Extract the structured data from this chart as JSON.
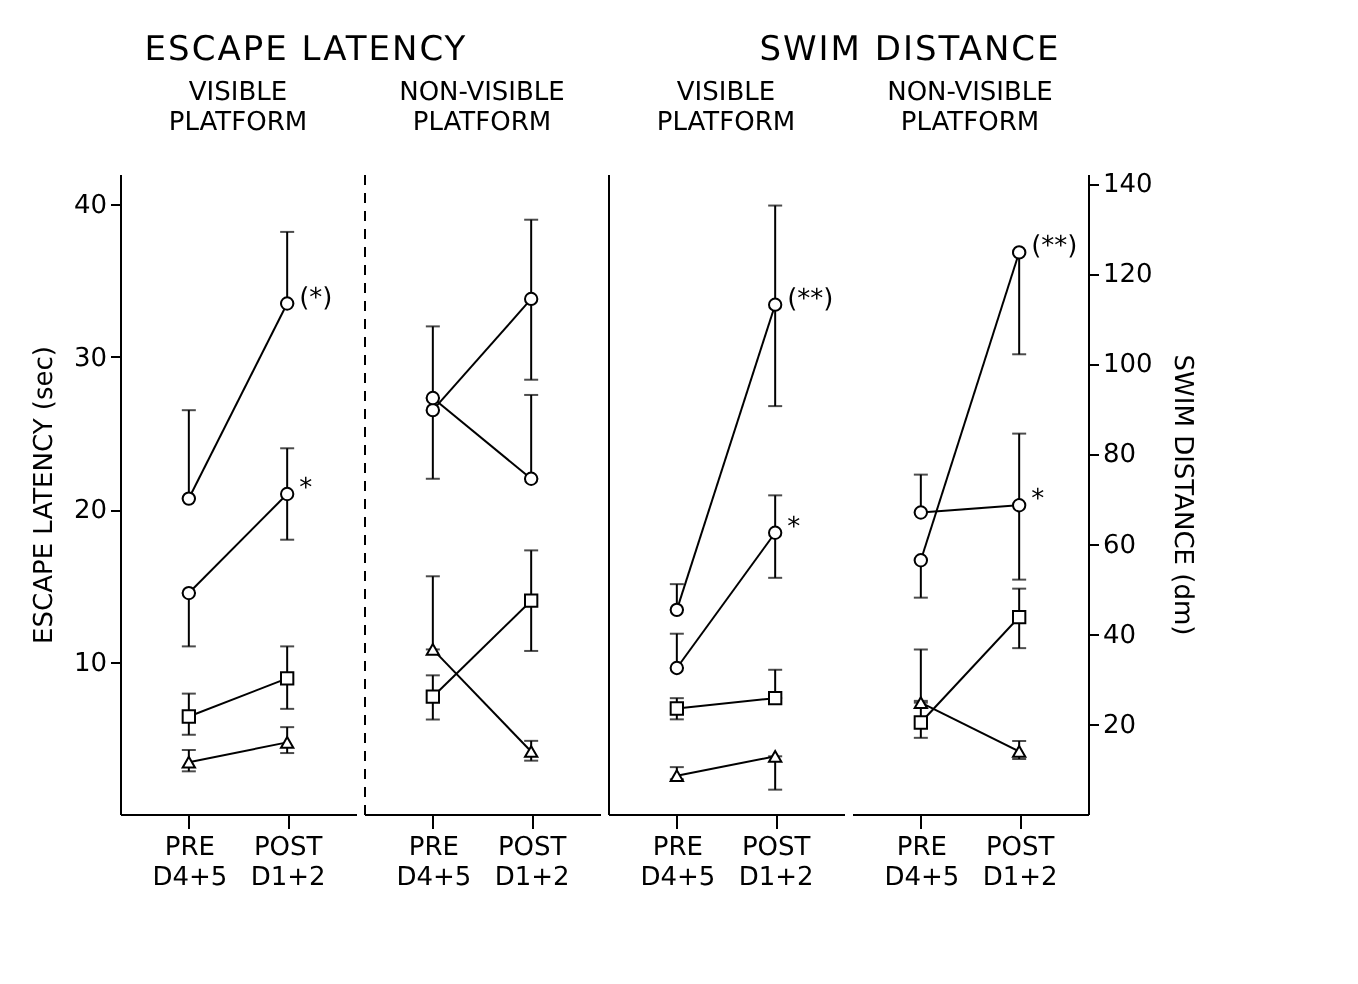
{
  "chart_data": [
    {
      "type": "line",
      "title": "ESCAPE LATENCY",
      "subtitle": "VISIBLE PLATFORM",
      "ylabel": "ESCAPE LATENCY (sec)",
      "categories": [
        "PRE D4+5",
        "POST D1+2"
      ],
      "ylim": [
        0,
        42
      ],
      "yticks": [
        10,
        20,
        30,
        40
      ],
      "series": [
        {
          "color": "#000000",
          "marker": "circle",
          "values": [
            20.7,
            33.5
          ],
          "errors": [
            [
              20.7,
              26.5
            ],
            [
              33.5,
              38.2
            ]
          ]
        },
        {
          "color": "#000000",
          "marker": "circle",
          "values": [
            14.5,
            21
          ],
          "errors": [
            [
              11,
              14.5
            ],
            [
              18,
              24
            ]
          ]
        },
        {
          "color": "#000000",
          "marker": "square",
          "values": [
            6.4,
            8.9
          ],
          "errors": [
            [
              5.2,
              7.9
            ],
            [
              6.9,
              11
            ]
          ]
        },
        {
          "color": "#000000",
          "marker": "triangle",
          "values": [
            3.4,
            4.7
          ],
          "errors": [
            [
              2.8,
              4.2
            ],
            [
              4,
              5.7
            ]
          ]
        }
      ],
      "annotations": [
        {
          "text": "(*)",
          "x": "POST D1+2",
          "y": 33.5
        },
        {
          "text": "*",
          "x": "POST D1+2",
          "y": 21
        }
      ]
    },
    {
      "type": "line",
      "subtitle": "NON-VISIBLE PLATFORM",
      "categories": [
        "PRE D4+5",
        "POST D1+2"
      ],
      "ylim": [
        0,
        42
      ],
      "tick_labels": "x",
      "series": [
        {
          "color": "#000000",
          "marker": "circle",
          "values": [
            26.5,
            33.8
          ],
          "errors": [
            [
              22,
              26.5
            ],
            [
              28.5,
              39
            ]
          ]
        },
        {
          "color": "#000000",
          "marker": "circle",
          "values": [
            27.3,
            22
          ],
          "errors": [
            [
              27.3,
              32
            ],
            [
              22,
              27.5
            ]
          ]
        },
        {
          "color": "#000000",
          "marker": "square",
          "values": [
            7.7,
            14
          ],
          "errors": [
            [
              6.2,
              9.1
            ],
            [
              10.7,
              17.3
            ]
          ]
        },
        {
          "color": "#000000",
          "marker": "triangle",
          "values": [
            10.8,
            4.1
          ],
          "errors": [
            [
              10.8,
              15.6
            ],
            [
              3.5,
              4.8
            ]
          ]
        }
      ]
    },
    {
      "type": "line",
      "title": "SWIM DISTANCE",
      "subtitle": "VISIBLE PLATFORM",
      "categories": [
        "PRE D4+5",
        "POST D1+2"
      ],
      "ylim": [
        0,
        142
      ],
      "tick_labels": "x",
      "series": [
        {
          "color": "#000000",
          "marker": "circle",
          "values": [
            45.3,
            113
          ],
          "errors": [
            [
              45.3,
              51
            ],
            [
              90.5,
              135
            ]
          ]
        },
        {
          "color": "#000000",
          "marker": "circle",
          "values": [
            32.4,
            62.4
          ],
          "errors": [
            [
              32.4,
              40
            ],
            [
              52.4,
              70.7
            ]
          ]
        },
        {
          "color": "#000000",
          "marker": "square",
          "values": [
            23.4,
            25.7
          ],
          "errors": [
            [
              21,
              25.7
            ],
            [
              25.7,
              32
            ]
          ]
        },
        {
          "color": "#000000",
          "marker": "triangle",
          "values": [
            8.5,
            12.8
          ],
          "errors": [
            [
              7.7,
              10.4
            ],
            [
              5.4,
              12.8
            ]
          ]
        }
      ],
      "annotations": [
        {
          "text": "(**)",
          "x": "POST D1+2",
          "y": 113
        },
        {
          "text": "*",
          "x": "POST D1+2",
          "y": 62.4
        }
      ]
    },
    {
      "type": "line",
      "subtitle": "NON-VISIBLE PLATFORM",
      "ylabel": "SWIM DISTANCE (dm)",
      "categories": [
        "PRE D4+5",
        "POST D1+2"
      ],
      "ylim": [
        0,
        142
      ],
      "yticks": [
        20,
        40,
        60,
        80,
        100,
        120,
        140
      ],
      "series": [
        {
          "color": "#000000",
          "marker": "circle",
          "values": [
            56.3,
            124.6
          ],
          "errors": [
            [
              48,
              56.3
            ],
            [
              102,
              124.6
            ]
          ]
        },
        {
          "color": "#000000",
          "marker": "circle",
          "values": [
            66.9,
            68.5
          ],
          "errors": [
            [
              66.9,
              75.3
            ],
            [
              52,
              84.4
            ]
          ]
        },
        {
          "color": "#000000",
          "marker": "square",
          "values": [
            20.3,
            43.7
          ],
          "errors": [
            [
              16.9,
              25.1
            ],
            [
              36.8,
              50
            ]
          ]
        },
        {
          "color": "#000000",
          "marker": "triangle",
          "values": [
            24.7,
            13.9
          ],
          "errors": [
            [
              24.7,
              36.5
            ],
            [
              12.2,
              16.2
            ]
          ]
        }
      ],
      "annotations": [
        {
          "text": "(**)",
          "x": "POST D1+2",
          "y": 124.6
        },
        {
          "text": "*",
          "x": "POST D1+2",
          "y": 68.5
        }
      ]
    }
  ]
}
